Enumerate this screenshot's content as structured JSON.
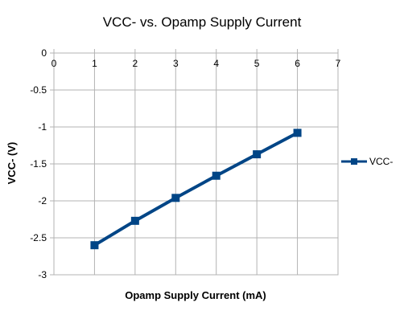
{
  "chart_data": {
    "type": "line",
    "title": "VCC- vs. Opamp Supply Current",
    "xlabel": "Opamp Supply Current (mA)",
    "ylabel": "VCC- (V)",
    "xlim": [
      0,
      7
    ],
    "ylim": [
      -3,
      0
    ],
    "x_ticks": [
      0,
      1,
      2,
      3,
      4,
      5,
      6,
      7
    ],
    "y_ticks": [
      0,
      -0.5,
      -1,
      -1.5,
      -2,
      -2.5,
      -3
    ],
    "grid": true,
    "legend_position": "right",
    "series": [
      {
        "name": "VCC-",
        "color": "#004586",
        "marker": "square",
        "x": [
          1,
          2,
          3,
          4,
          5,
          6
        ],
        "y": [
          -2.6,
          -2.27,
          -1.96,
          -1.66,
          -1.37,
          -1.08
        ]
      }
    ]
  }
}
